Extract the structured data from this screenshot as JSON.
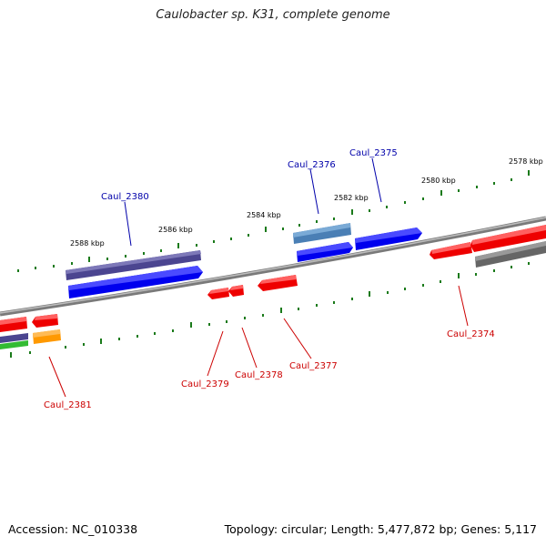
{
  "title": "Caulobacter sp. K31, complete genome",
  "footer": {
    "accession": "Accession: NC_010338",
    "stats": "Topology: circular; Length: 5,477,872 bp; Genes: 5,117"
  },
  "scale_labels": [
    "2588 kbp",
    "2586 kbp",
    "2584 kbp",
    "2582 kbp",
    "2580 kbp",
    "2578 kbp"
  ],
  "gene_labels": {
    "top": [
      "Caul_2380",
      "Caul_2376",
      "Caul_2375"
    ],
    "bottom": [
      "Caul_2381",
      "Caul_2379",
      "Caul_2378",
      "Caul_2377",
      "Caul_2374"
    ]
  },
  "colors": {
    "backbone": "#888888",
    "tick": "#1a7a1a",
    "forward_gene": "#0000ee",
    "reverse_gene": "#ee0000",
    "top_label": "#0000aa",
    "bottom_label": "#cc0000",
    "dark_purple": "#4b4590",
    "steel_blue": "#4a7fb5",
    "gray": "#666666",
    "green": "#33bb33",
    "orange": "#ff9900"
  }
}
